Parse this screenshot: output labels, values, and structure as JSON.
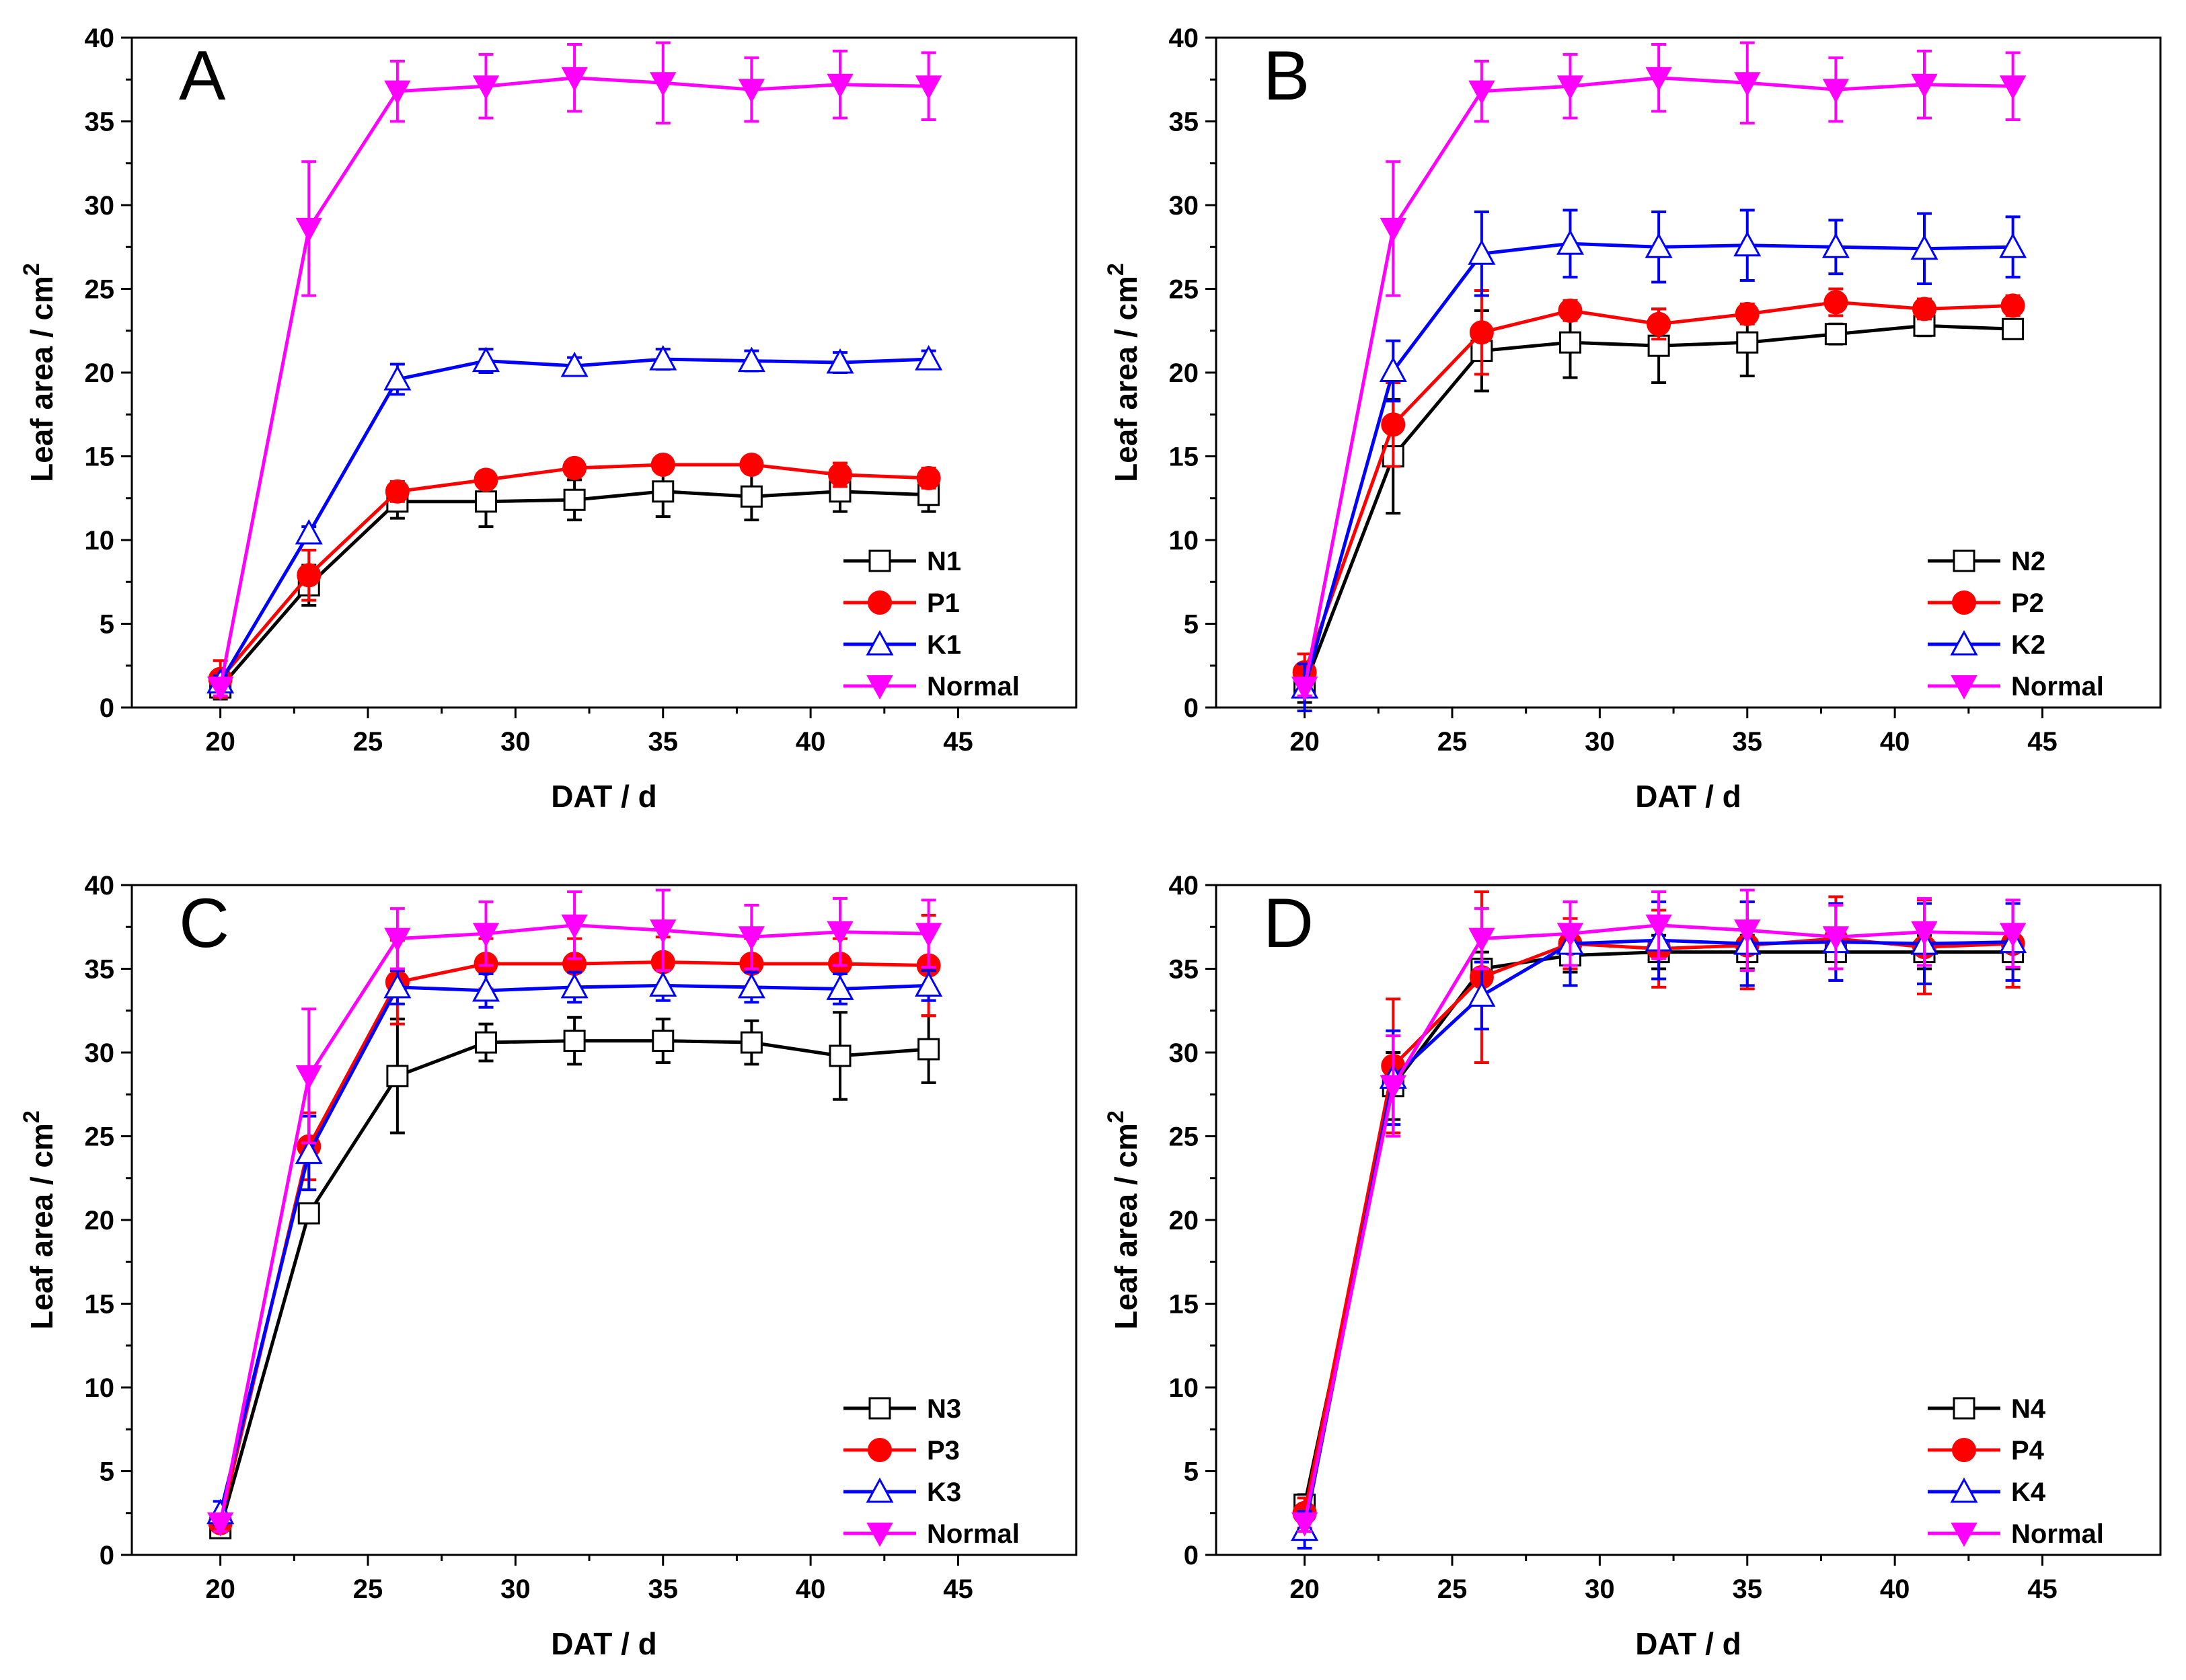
{
  "chart_data": [
    {
      "type": "line",
      "panel_label": "A",
      "xlabel": "DAT / d",
      "ylabel": "Leaf area / cm",
      "ylabel_superscript": "2",
      "xlim": [
        17,
        49
      ],
      "ylim": [
        0,
        40
      ],
      "xticks": [
        20,
        25,
        30,
        35,
        40,
        45
      ],
      "yticks": [
        0,
        5,
        10,
        15,
        20,
        25,
        30,
        35,
        40
      ],
      "x": [
        20,
        23,
        26,
        29,
        32,
        35,
        38,
        41,
        44
      ],
      "legend_position": "bottom-right",
      "series": [
        {
          "name": "N1",
          "color": "#000000",
          "marker": "square-open",
          "values": [
            1.2,
            7.3,
            12.3,
            12.3,
            12.4,
            12.9,
            12.6,
            12.9,
            12.7
          ],
          "errors": [
            0.7,
            1.2,
            1.0,
            1.5,
            1.2,
            1.5,
            1.4,
            1.2,
            1.0
          ]
        },
        {
          "name": "P1",
          "color": "#ff0000",
          "marker": "circle-filled",
          "values": [
            1.7,
            7.9,
            12.9,
            13.6,
            14.3,
            14.5,
            14.5,
            13.9,
            13.7
          ],
          "errors": [
            1.1,
            1.5,
            0.6,
            0.5,
            0.5,
            0.5,
            0.5,
            0.7,
            0.6
          ]
        },
        {
          "name": "K1",
          "color": "#0000ff",
          "marker": "triangle-up-open",
          "values": [
            1.5,
            10.4,
            19.6,
            20.7,
            20.4,
            20.8,
            20.7,
            20.6,
            20.8
          ],
          "errors": [
            0.4,
            0.4,
            0.9,
            0.7,
            0.5,
            0.6,
            0.6,
            0.6,
            0.5
          ]
        },
        {
          "name": "Normal",
          "color": "#ff00ff",
          "marker": "triangle-down-filled",
          "values": [
            1.2,
            28.6,
            36.8,
            37.1,
            37.6,
            37.3,
            36.9,
            37.2,
            37.1
          ],
          "errors": [
            0.5,
            4.0,
            1.8,
            1.9,
            2.0,
            2.4,
            1.9,
            2.0,
            2.0
          ]
        }
      ]
    },
    {
      "type": "line",
      "panel_label": "B",
      "xlabel": "DAT / d",
      "ylabel": "Leaf area / cm",
      "ylabel_superscript": "2",
      "xlim": [
        17,
        49
      ],
      "ylim": [
        0,
        40
      ],
      "xticks": [
        20,
        25,
        30,
        35,
        40,
        45
      ],
      "yticks": [
        0,
        5,
        10,
        15,
        20,
        25,
        30,
        35,
        40
      ],
      "x": [
        20,
        23,
        26,
        29,
        32,
        35,
        38,
        41,
        44
      ],
      "legend_position": "bottom-right",
      "series": [
        {
          "name": "N2",
          "color": "#000000",
          "marker": "square-open",
          "values": [
            1.3,
            15.0,
            21.3,
            21.8,
            21.6,
            21.8,
            22.3,
            22.8,
            22.6
          ],
          "errors": [
            1.0,
            3.4,
            2.4,
            2.1,
            2.2,
            2.0,
            0.6,
            0.6,
            0.5
          ]
        },
        {
          "name": "P2",
          "color": "#ff0000",
          "marker": "circle-filled",
          "values": [
            2.1,
            16.9,
            22.4,
            23.7,
            22.9,
            23.5,
            24.2,
            23.8,
            24.0
          ],
          "errors": [
            1.1,
            2.5,
            2.5,
            0.6,
            0.9,
            0.6,
            0.8,
            0.6,
            0.6
          ]
        },
        {
          "name": "K2",
          "color": "#0000ff",
          "marker": "triangle-up-open",
          "values": [
            1.2,
            20.1,
            27.1,
            27.7,
            27.5,
            27.6,
            27.5,
            27.4,
            27.5
          ],
          "errors": [
            1.4,
            1.8,
            2.5,
            2.0,
            2.1,
            2.1,
            1.6,
            2.1,
            1.8
          ]
        },
        {
          "name": "Normal",
          "color": "#ff00ff",
          "marker": "triangle-down-filled",
          "values": [
            1.2,
            28.6,
            36.8,
            37.1,
            37.6,
            37.3,
            36.9,
            37.2,
            37.1
          ],
          "errors": [
            0.5,
            4.0,
            1.8,
            1.9,
            2.0,
            2.4,
            1.9,
            2.0,
            2.0
          ]
        }
      ]
    },
    {
      "type": "line",
      "panel_label": "C",
      "xlabel": "DAT / d",
      "ylabel": "Leaf area / cm",
      "ylabel_superscript": "2",
      "xlim": [
        17,
        49
      ],
      "ylim": [
        0,
        40
      ],
      "xticks": [
        20,
        25,
        30,
        35,
        40,
        45
      ],
      "yticks": [
        0,
        5,
        10,
        15,
        20,
        25,
        30,
        35,
        40
      ],
      "x": [
        20,
        23,
        26,
        29,
        32,
        35,
        38,
        41,
        44
      ],
      "legend_position": "bottom-right",
      "series": [
        {
          "name": "N3",
          "color": "#000000",
          "marker": "square-open",
          "values": [
            1.6,
            20.4,
            28.6,
            30.6,
            30.7,
            30.7,
            30.6,
            29.8,
            30.2
          ],
          "errors": [
            0.4,
            0.4,
            3.4,
            1.1,
            1.4,
            1.3,
            1.3,
            2.6,
            2.0
          ]
        },
        {
          "name": "P3",
          "color": "#ff0000",
          "marker": "circle-filled",
          "values": [
            1.9,
            24.4,
            34.2,
            35.3,
            35.3,
            35.4,
            35.3,
            35.3,
            35.2
          ],
          "errors": [
            0.5,
            2.0,
            2.5,
            1.5,
            1.5,
            1.5,
            1.5,
            1.5,
            3.0
          ]
        },
        {
          "name": "K3",
          "color": "#0000ff",
          "marker": "triangle-up-open",
          "values": [
            2.5,
            24.0,
            33.9,
            33.7,
            33.9,
            34.0,
            33.9,
            33.8,
            34.0
          ],
          "errors": [
            0.7,
            2.2,
            1.0,
            1.0,
            0.9,
            0.9,
            0.9,
            0.9,
            0.9
          ]
        },
        {
          "name": "Normal",
          "color": "#ff00ff",
          "marker": "triangle-down-filled",
          "values": [
            1.9,
            28.6,
            36.8,
            37.1,
            37.6,
            37.3,
            36.9,
            37.2,
            37.1
          ],
          "errors": [
            0.5,
            4.0,
            1.8,
            1.9,
            2.0,
            2.4,
            1.9,
            2.0,
            2.0
          ]
        }
      ]
    },
    {
      "type": "line",
      "panel_label": "D",
      "xlabel": "DAT / d",
      "ylabel": "Leaf area / cm",
      "ylabel_superscript": "2",
      "xlim": [
        17,
        49
      ],
      "ylim": [
        0,
        40
      ],
      "xticks": [
        20,
        25,
        30,
        35,
        40,
        45
      ],
      "yticks": [
        0,
        5,
        10,
        15,
        20,
        25,
        30,
        35,
        40
      ],
      "x": [
        20,
        23,
        26,
        29,
        32,
        35,
        38,
        41,
        44
      ],
      "legend_position": "bottom-right",
      "series": [
        {
          "name": "N4",
          "color": "#000000",
          "marker": "square-open",
          "values": [
            3.0,
            28.0,
            35.0,
            35.8,
            36.0,
            36.0,
            36.0,
            36.0,
            36.0
          ],
          "errors": [
            0.6,
            2.0,
            1.0,
            1.0,
            1.0,
            1.0,
            1.0,
            1.0,
            1.0
          ]
        },
        {
          "name": "P4",
          "color": "#ff0000",
          "marker": "circle-filled",
          "values": [
            2.5,
            29.2,
            34.5,
            36.5,
            36.2,
            36.4,
            36.8,
            36.3,
            36.5
          ],
          "errors": [
            0.9,
            4.0,
            5.1,
            1.5,
            2.3,
            2.6,
            2.5,
            2.8,
            2.6
          ]
        },
        {
          "name": "K4",
          "color": "#0000ff",
          "marker": "triangle-up-open",
          "values": [
            1.5,
            28.5,
            33.4,
            36.5,
            36.7,
            36.5,
            36.6,
            36.5,
            36.6
          ],
          "errors": [
            1.1,
            2.8,
            2.0,
            2.5,
            2.3,
            2.5,
            2.3,
            2.4,
            2.3
          ]
        },
        {
          "name": "Normal",
          "color": "#ff00ff",
          "marker": "triangle-down-filled",
          "values": [
            1.9,
            28.0,
            36.8,
            37.1,
            37.6,
            37.3,
            36.9,
            37.2,
            37.1
          ],
          "errors": [
            0.5,
            3.0,
            1.8,
            1.9,
            2.0,
            2.4,
            1.9,
            2.0,
            2.0
          ]
        }
      ]
    }
  ]
}
